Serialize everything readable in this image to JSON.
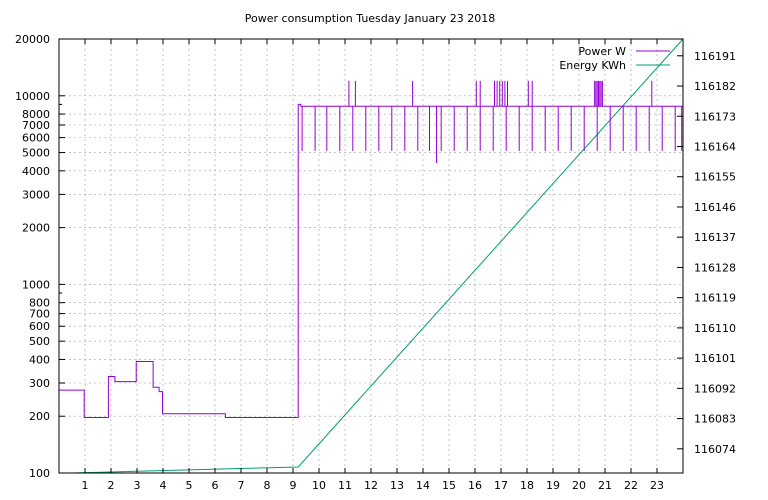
{
  "chart_data": {
    "type": "line",
    "title": "Power consumption Tuesday January 23 2018",
    "xlabel": "",
    "ylabel": "",
    "y2label": "",
    "xlim": [
      0,
      24
    ],
    "x_ticks": [
      1,
      2,
      3,
      4,
      5,
      6,
      7,
      8,
      9,
      10,
      11,
      12,
      13,
      14,
      15,
      16,
      17,
      18,
      19,
      20,
      21,
      22,
      23
    ],
    "ylim": [
      100,
      20000
    ],
    "y_scale": "log",
    "y_ticks": [
      100,
      200,
      300,
      400,
      500,
      600,
      700,
      800,
      1000,
      2000,
      3000,
      4000,
      5000,
      6000,
      7000,
      8000,
      10000,
      20000
    ],
    "y2lim": [
      116066.8,
      116196.0
    ],
    "y2_ticks": [
      116074,
      116083,
      116092,
      116101,
      116110,
      116119,
      116128,
      116137,
      116146,
      116155,
      116164,
      116173,
      116182,
      116191
    ],
    "grid": true,
    "legend_position": "top-right",
    "series": [
      {
        "name": "Power W",
        "axis": "y",
        "color": "#9400d3",
        "baseline": [
          [
            0,
            275
          ],
          [
            0.97,
            275
          ],
          [
            0.97,
            197
          ],
          [
            1.9,
            197
          ],
          [
            1.9,
            325
          ],
          [
            2.15,
            325
          ],
          [
            2.15,
            305
          ],
          [
            2.97,
            305
          ],
          [
            2.97,
            390
          ],
          [
            3.62,
            390
          ],
          [
            3.62,
            285
          ],
          [
            3.85,
            285
          ],
          [
            3.85,
            270
          ],
          [
            3.98,
            270
          ],
          [
            3.98,
            206
          ],
          [
            6.4,
            206
          ],
          [
            6.4,
            197
          ],
          [
            9.2,
            197
          ],
          [
            9.2,
            9000
          ],
          [
            9.3,
            9000
          ],
          [
            9.3,
            8800
          ],
          [
            24,
            8800
          ]
        ],
        "spikes_low": [
          9.35,
          9.85,
          10.3,
          10.8,
          11.3,
          11.8,
          12.3,
          12.8,
          13.3,
          13.8,
          14.25,
          14.7,
          15.2,
          15.7,
          16.2,
          16.7,
          17.2,
          17.7,
          18.2,
          18.7,
          19.2,
          19.7,
          20.2,
          20.7,
          21.2,
          21.7,
          22.2,
          22.7,
          23.2,
          23.7,
          23.95
        ],
        "spikes_low_value": 5100,
        "spikes_deep": [
          [
            14.52,
            4400
          ]
        ],
        "spikes_high": [
          11.15,
          11.4,
          13.6,
          16.05,
          16.2,
          16.75,
          16.85,
          16.95,
          17.05,
          17.15,
          17.25,
          18.05,
          18.2,
          20.6,
          20.65,
          20.7,
          20.75,
          20.8,
          20.85,
          20.9,
          22.8
        ],
        "spikes_high_value": 12000
      },
      {
        "name": "Energy KWh",
        "axis": "y2",
        "color": "#009e73",
        "values": [
          [
            0.5,
            116066.8
          ],
          [
            9.2,
            116068.6
          ],
          [
            24,
            116196.0
          ]
        ]
      }
    ]
  }
}
